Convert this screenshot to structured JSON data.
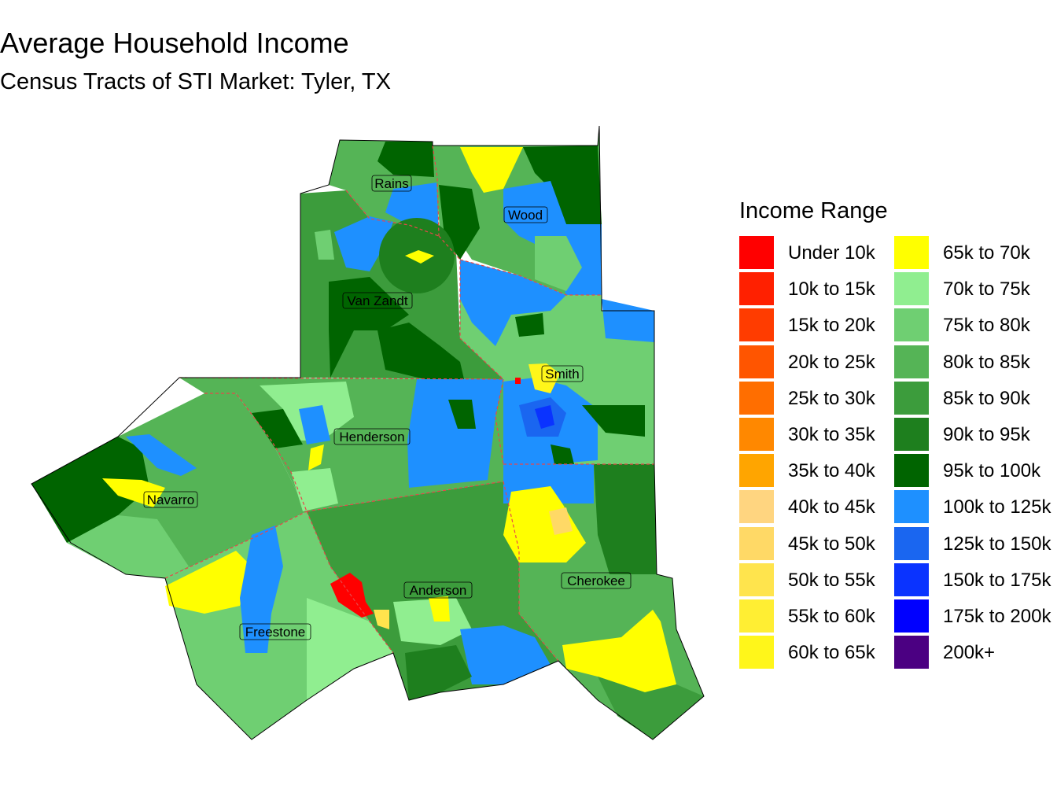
{
  "title": "Average Household Income",
  "subtitle": "Census Tracts of STI Market: Tyler, TX",
  "legend": {
    "title": "Income Range",
    "items": [
      {
        "label": "Under 10k",
        "color": "#FF0000"
      },
      {
        "label": "10k to 15k",
        "color": "#FF2000"
      },
      {
        "label": "15k to 20k",
        "color": "#FF3C00"
      },
      {
        "label": "20k to 25k",
        "color": "#FF5500"
      },
      {
        "label": "25k to 30k",
        "color": "#FF6E00"
      },
      {
        "label": "30k to 35k",
        "color": "#FF8800"
      },
      {
        "label": "35k to 40k",
        "color": "#FFA500"
      },
      {
        "label": "40k to 45k",
        "color": "#FFD580"
      },
      {
        "label": "45k to 50k",
        "color": "#FFD966"
      },
      {
        "label": "50k to 55k",
        "color": "#FFE44D"
      },
      {
        "label": "55k to 60k",
        "color": "#FFEE33"
      },
      {
        "label": "60k to 65k",
        "color": "#FFF61A"
      },
      {
        "label": "65k to 70k",
        "color": "#FFFF00"
      },
      {
        "label": "70k to 75k",
        "color": "#90EE90"
      },
      {
        "label": "75k to 80k",
        "color": "#6FCF72"
      },
      {
        "label": "80k to 85k",
        "color": "#55B456"
      },
      {
        "label": "85k to 90k",
        "color": "#3C9C3C"
      },
      {
        "label": "90k to 95k",
        "color": "#1E7F1E"
      },
      {
        "label": "95k to 100k",
        "color": "#006400"
      },
      {
        "label": "100k to 125k",
        "color": "#1E90FF"
      },
      {
        "label": "125k to 150k",
        "color": "#1A66F0"
      },
      {
        "label": "150k to 175k",
        "color": "#0A33FF"
      },
      {
        "label": "175k to 200k",
        "color": "#0000FF"
      },
      {
        "label": "200k+",
        "color": "#4B0082"
      }
    ]
  },
  "counties": [
    {
      "name": "Rains"
    },
    {
      "name": "Wood"
    },
    {
      "name": "Van Zandt"
    },
    {
      "name": "Smith"
    },
    {
      "name": "Henderson"
    },
    {
      "name": "Navarro"
    },
    {
      "name": "Anderson"
    },
    {
      "name": "Cherokee"
    },
    {
      "name": "Freestone"
    }
  ]
}
